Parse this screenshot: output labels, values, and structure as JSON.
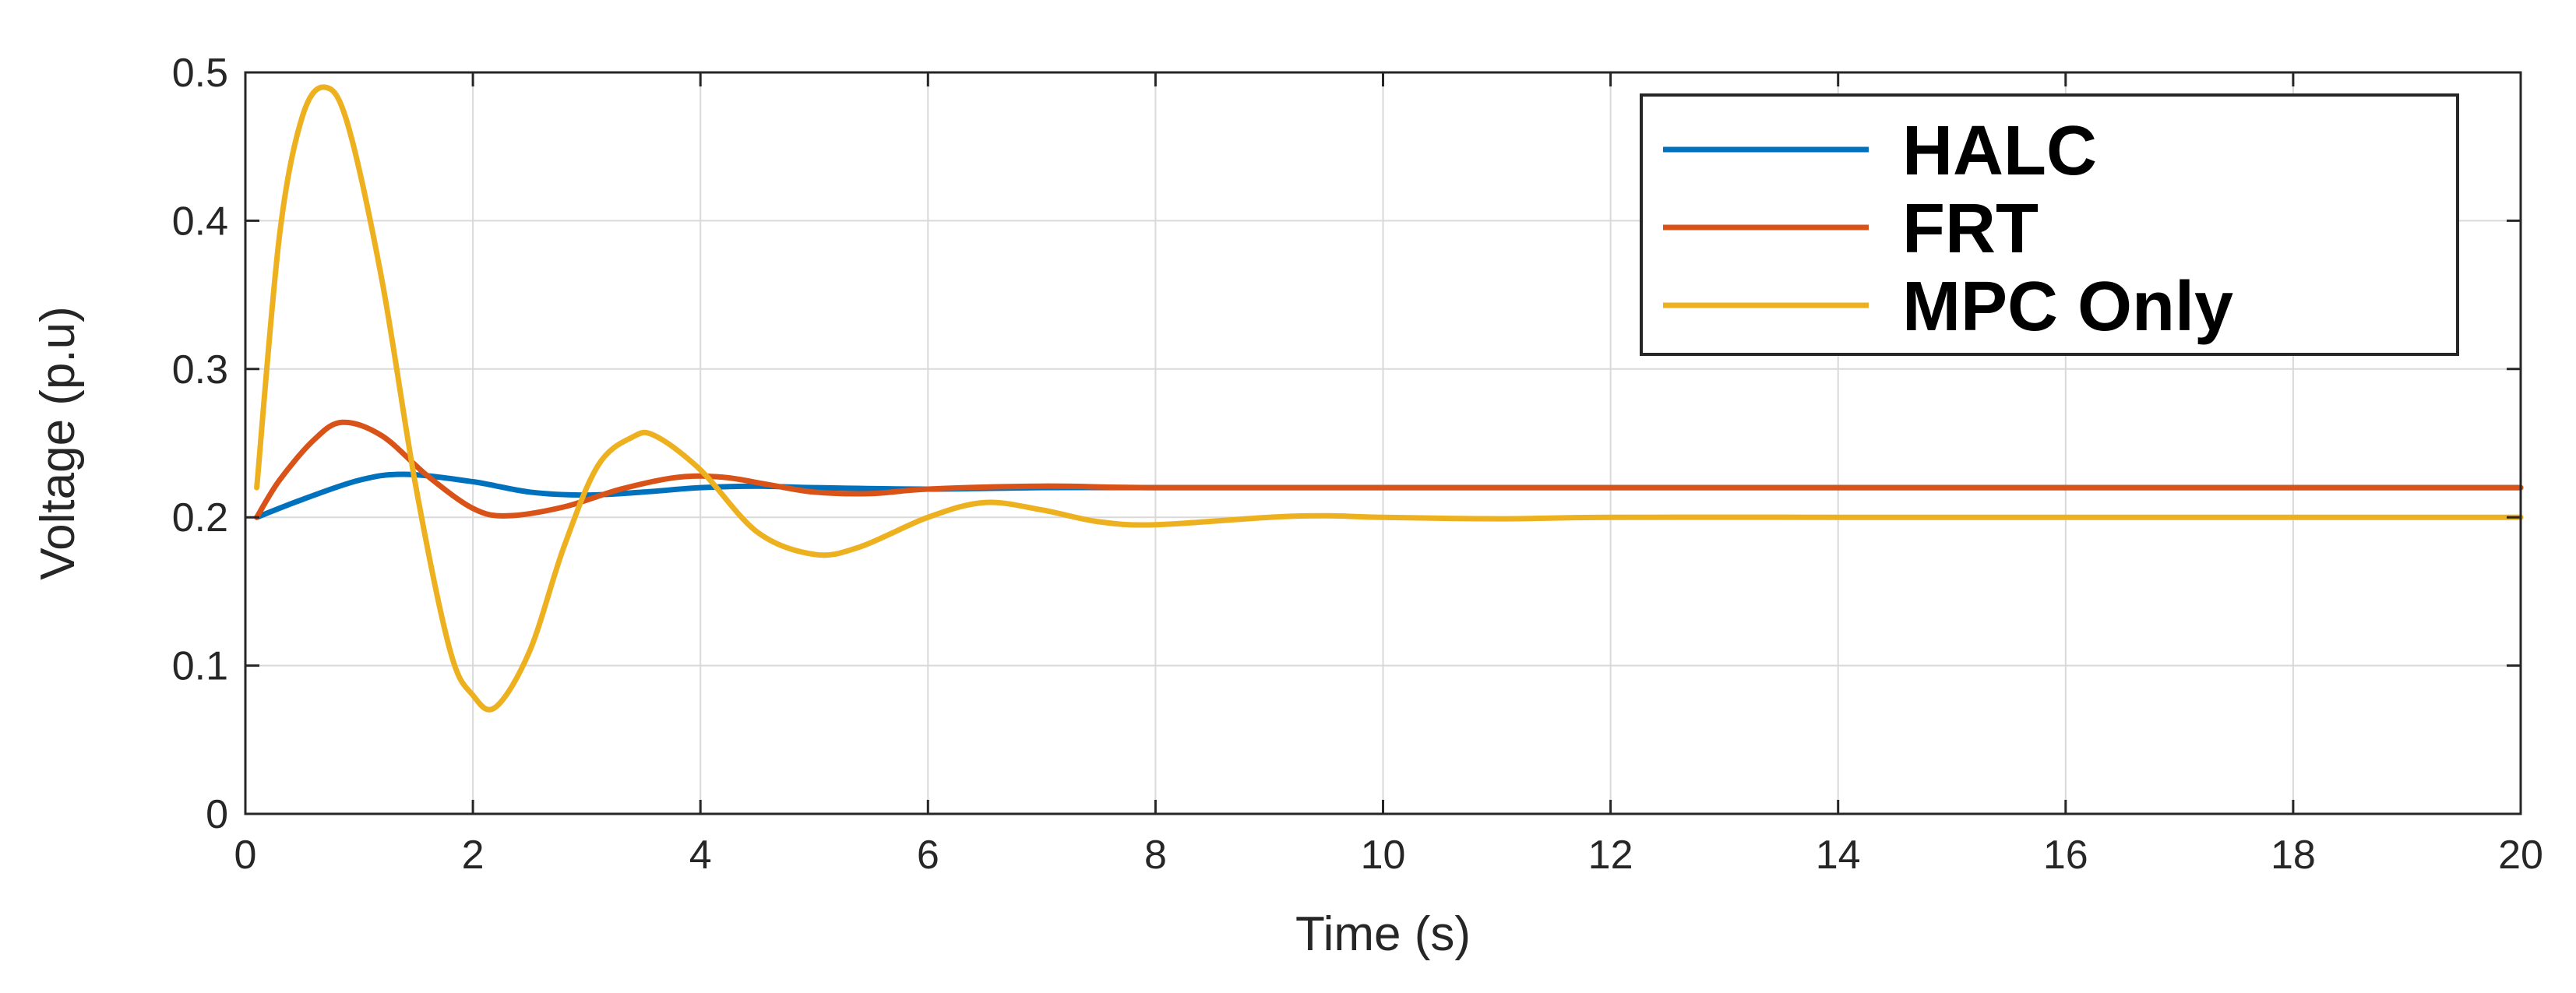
{
  "chart_data": {
    "type": "line",
    "title": "",
    "xlabel": "Time (s)",
    "ylabel": "Voltage (p.u)",
    "xlim": [
      0,
      20
    ],
    "ylim": [
      0,
      0.5
    ],
    "xticks": [
      0,
      2,
      4,
      6,
      8,
      10,
      12,
      14,
      16,
      18,
      20
    ],
    "xtick_labels": [
      "0",
      "2",
      "4",
      "6",
      "8",
      "10",
      "12",
      "14",
      "16",
      "18",
      "20"
    ],
    "yticks": [
      0,
      0.1,
      0.2,
      0.3,
      0.4,
      0.5
    ],
    "ytick_labels": [
      "0",
      "0.1",
      "0.2",
      "0.3",
      "0.4",
      "0.5"
    ],
    "grid": true,
    "legend_position": "top-right",
    "series": [
      {
        "name": "HALC",
        "color": "#0072BD",
        "x": [
          0.1,
          0.5,
          1.0,
          1.4,
          2.0,
          2.5,
          3.0,
          3.5,
          4.0,
          4.5,
          5.0,
          6.0,
          7.0,
          8.0,
          10.0,
          12.0,
          14.0,
          16.0,
          18.0,
          20.0
        ],
        "y": [
          0.2,
          0.212,
          0.225,
          0.229,
          0.224,
          0.217,
          0.215,
          0.217,
          0.22,
          0.221,
          0.22,
          0.219,
          0.22,
          0.22,
          0.22,
          0.22,
          0.22,
          0.22,
          0.22,
          0.22
        ]
      },
      {
        "name": "FRT",
        "color": "#D95319",
        "x": [
          0.1,
          0.3,
          0.6,
          0.85,
          1.2,
          1.6,
          2.0,
          2.3,
          2.8,
          3.3,
          3.8,
          4.2,
          4.6,
          5.0,
          5.5,
          6.0,
          7.0,
          8.0,
          10.0,
          12.0,
          14.0,
          16.0,
          18.0,
          20.0
        ],
        "y": [
          0.2,
          0.225,
          0.252,
          0.264,
          0.255,
          0.228,
          0.206,
          0.201,
          0.207,
          0.219,
          0.227,
          0.227,
          0.222,
          0.217,
          0.216,
          0.219,
          0.221,
          0.22,
          0.22,
          0.22,
          0.22,
          0.22,
          0.22,
          0.22
        ]
      },
      {
        "name": "MPC Only",
        "color": "#EDB120",
        "x": [
          0.1,
          0.3,
          0.5,
          0.7,
          0.9,
          1.2,
          1.5,
          1.8,
          2.0,
          2.2,
          2.5,
          2.8,
          3.1,
          3.4,
          3.6,
          4.0,
          4.5,
          5.0,
          5.4,
          6.0,
          6.5,
          7.0,
          7.5,
          8.0,
          9.0,
          9.5,
          10.0,
          11.0,
          12.0,
          14.0,
          16.0,
          18.0,
          20.0
        ],
        "y": [
          0.22,
          0.39,
          0.47,
          0.49,
          0.465,
          0.36,
          0.22,
          0.11,
          0.08,
          0.072,
          0.11,
          0.18,
          0.235,
          0.254,
          0.255,
          0.232,
          0.19,
          0.175,
          0.18,
          0.2,
          0.21,
          0.205,
          0.197,
          0.195,
          0.2,
          0.201,
          0.2,
          0.199,
          0.2,
          0.2,
          0.2,
          0.2,
          0.2
        ]
      }
    ]
  }
}
